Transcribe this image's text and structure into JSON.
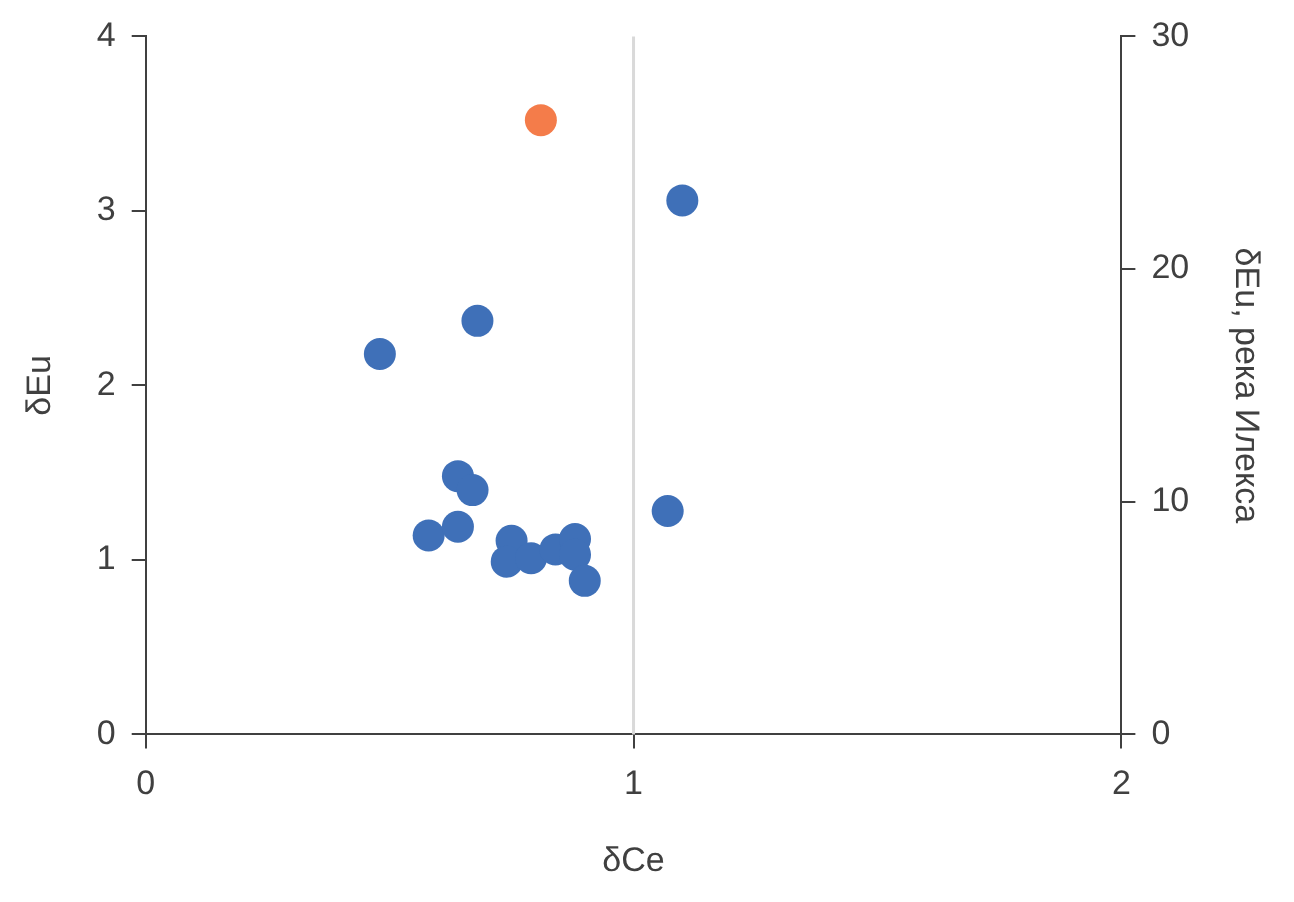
{
  "chart_data": {
    "type": "scatter",
    "xlabel": "δCe",
    "ylabel": "δEu",
    "y2label": "δEu, река Илекса",
    "xlim": [
      0,
      2
    ],
    "xticks": [
      0,
      1,
      2
    ],
    "ylim": [
      0,
      4
    ],
    "yticks": [
      0,
      1,
      2,
      3,
      4
    ],
    "y2lim": [
      0,
      30
    ],
    "y2ticks": [
      0,
      10,
      20,
      30
    ],
    "grid": false,
    "legend": false,
    "marker": "circle",
    "ref_lines": [
      {
        "axis": "x",
        "value": 1,
        "color": "#d9d9d9"
      }
    ],
    "series": [
      {
        "color": "#3f70b8",
        "x": [
          0.48,
          0.68,
          0.64,
          0.67,
          0.58,
          0.64,
          0.75,
          0.74,
          0.79,
          0.84,
          0.88,
          0.88,
          0.9,
          1.07,
          1.1
        ],
        "values": [
          2.18,
          2.37,
          1.48,
          1.4,
          1.14,
          1.19,
          1.11,
          0.99,
          1.01,
          1.06,
          1.12,
          1.03,
          0.88,
          1.28,
          3.06
        ]
      },
      {
        "color": "#f47c4a",
        "axis": "y2",
        "x": [
          0.81
        ],
        "values": [
          26.4
        ]
      }
    ]
  }
}
